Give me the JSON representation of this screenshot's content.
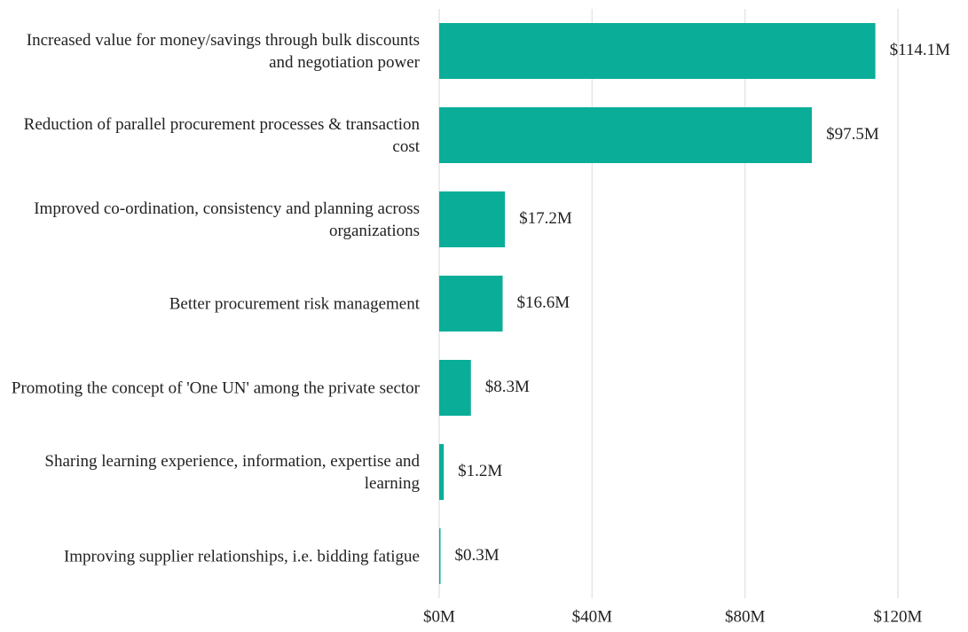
{
  "chart_data": {
    "type": "bar",
    "orientation": "horizontal",
    "categories": [
      "Increased value for money/savings through bulk discounts and negotiation power",
      "Reduction of parallel procurement processes & transaction cost",
      "Improved co-ordination, consistency and planning across organizations",
      "Better procurement risk management",
      "Promoting the concept of 'One UN' among the private sector",
      "Sharing learning experience, information, expertise and learning",
      "Improving supplier relationships, i.e. bidding fatigue"
    ],
    "values": [
      114.1,
      97.5,
      17.2,
      16.6,
      8.3,
      1.2,
      0.3
    ],
    "value_labels": [
      "$114.1M",
      "$97.5M",
      "$17.2M",
      "$16.6M",
      "$8.3M",
      "$1.2M",
      "$0.3M"
    ],
    "color": "#0aae98",
    "xlim": [
      0,
      120
    ],
    "xticks": [
      {
        "value": 0,
        "label": "$0M"
      },
      {
        "value": 40,
        "label": "$40M"
      },
      {
        "value": 80,
        "label": "$80M"
      },
      {
        "value": 120,
        "label": "$120M"
      }
    ],
    "grid": true
  }
}
